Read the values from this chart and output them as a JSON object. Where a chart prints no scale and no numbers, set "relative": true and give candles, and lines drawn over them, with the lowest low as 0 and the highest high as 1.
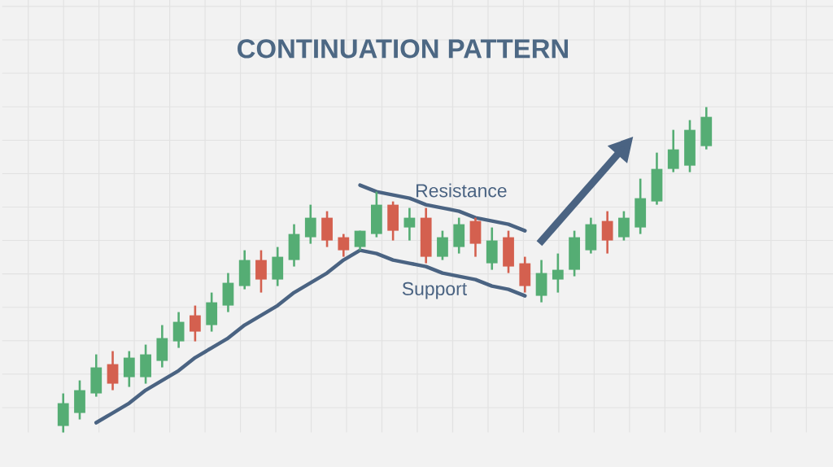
{
  "chart_data": {
    "type": "candlestick",
    "title": "CONTINUATION PATTERN",
    "relative": true,
    "grid": true,
    "categories": [
      null,
      null,
      null,
      null,
      null,
      null,
      null,
      null,
      null,
      null,
      null,
      null,
      null,
      null,
      null,
      null,
      null,
      null,
      null,
      null,
      null,
      null,
      null,
      null,
      null,
      null,
      null,
      null,
      null,
      null,
      null,
      null,
      null,
      null,
      null,
      null,
      null,
      null,
      null,
      null
    ],
    "ohlc": [
      [
        0.02,
        0.12,
        0,
        0.09
      ],
      [
        0.06,
        0.16,
        0.04,
        0.13
      ],
      [
        0.12,
        0.24,
        0.11,
        0.2
      ],
      [
        0.21,
        0.25,
        0.13,
        0.15
      ],
      [
        0.17,
        0.25,
        0.14,
        0.23
      ],
      [
        0.17,
        0.27,
        0.15,
        0.24
      ],
      [
        0.22,
        0.33,
        0.2,
        0.29
      ],
      [
        0.28,
        0.37,
        0.26,
        0.34
      ],
      [
        0.36,
        0.39,
        0.28,
        0.31
      ],
      [
        0.33,
        0.43,
        0.31,
        0.4
      ],
      [
        0.39,
        0.49,
        0.37,
        0.46
      ],
      [
        0.45,
        0.56,
        0.44,
        0.53
      ],
      [
        0.53,
        0.56,
        0.43,
        0.47
      ],
      [
        0.47,
        0.57,
        0.45,
        0.54
      ],
      [
        0.53,
        0.64,
        0.51,
        0.61
      ],
      [
        0.6,
        0.7,
        0.58,
        0.66
      ],
      [
        0.66,
        0.68,
        0.57,
        0.59
      ],
      [
        0.6,
        0.61,
        0.54,
        0.56
      ],
      [
        0.57,
        0.62,
        0.56,
        0.62
      ],
      [
        0.61,
        0.74,
        0.6,
        0.7
      ],
      [
        0.7,
        0.71,
        0.59,
        0.62
      ],
      [
        0.63,
        0.69,
        0.59,
        0.66
      ],
      [
        0.66,
        0.69,
        0.52,
        0.54
      ],
      [
        0.54,
        0.62,
        0.53,
        0.6
      ],
      [
        0.57,
        0.66,
        0.55,
        0.64
      ],
      [
        0.65,
        0.66,
        0.54,
        0.58
      ],
      [
        0.52,
        0.63,
        0.5,
        0.59
      ],
      [
        0.6,
        0.62,
        0.49,
        0.51
      ],
      [
        0.52,
        0.54,
        0.43,
        0.45
      ],
      [
        0.42,
        0.53,
        0.4,
        0.49
      ],
      [
        0.47,
        0.55,
        0.43,
        0.5
      ],
      [
        0.5,
        0.62,
        0.48,
        0.6
      ],
      [
        0.56,
        0.66,
        0.55,
        0.64
      ],
      [
        0.65,
        0.68,
        0.55,
        0.59
      ],
      [
        0.6,
        0.68,
        0.59,
        0.66
      ],
      [
        0.63,
        0.78,
        0.61,
        0.72
      ],
      [
        0.71,
        0.86,
        0.7,
        0.81
      ],
      [
        0.81,
        0.93,
        0.8,
        0.87
      ],
      [
        0.82,
        0.96,
        0.8,
        0.93
      ],
      [
        0.88,
        1.0,
        0.87,
        0.97
      ]
    ],
    "colors": [
      "#55ad74",
      "#55ad74",
      "#55ad74",
      "#d4604f",
      "#55ad74",
      "#55ad74",
      "#55ad74",
      "#55ad74",
      "#d4604f",
      "#55ad74",
      "#55ad74",
      "#55ad74",
      "#d4604f",
      "#55ad74",
      "#55ad74",
      "#55ad74",
      "#d4604f",
      "#d4604f",
      "#55ad74",
      "#55ad74",
      "#d4604f",
      "#55ad74",
      "#d4604f",
      "#55ad74",
      "#55ad74",
      "#d4604f",
      "#55ad74",
      "#d4604f",
      "#d4604f",
      "#55ad74",
      "#55ad74",
      "#55ad74",
      "#55ad74",
      "#d4604f",
      "#55ad74",
      "#55ad74",
      "#55ad74",
      "#55ad74",
      "#55ad74",
      "#55ad74"
    ],
    "series": [
      {
        "type": "line",
        "name": "Resistance",
        "color": "#4a6382",
        "values": [
          null,
          null,
          null,
          null,
          null,
          null,
          null,
          null,
          null,
          null,
          null,
          null,
          null,
          null,
          null,
          null,
          null,
          null,
          0.76,
          0.74,
          0.73,
          0.72,
          0.7,
          0.69,
          0.68,
          0.66,
          0.65,
          0.64,
          0.62,
          null,
          null,
          null,
          null,
          null,
          null,
          null,
          null,
          null,
          null,
          null
        ]
      },
      {
        "type": "line",
        "name": "Support",
        "color": "#4a6382",
        "values": [
          null,
          null,
          0.03,
          0.06,
          0.09,
          0.13,
          0.16,
          0.19,
          0.23,
          0.26,
          0.29,
          0.33,
          0.36,
          0.39,
          0.43,
          0.46,
          0.49,
          0.53,
          0.56,
          0.55,
          0.53,
          0.52,
          0.51,
          0.49,
          0.48,
          0.47,
          0.45,
          0.44,
          0.42,
          null,
          null,
          null,
          null,
          null,
          null,
          null,
          null,
          null,
          null,
          null
        ]
      }
    ]
  }
}
